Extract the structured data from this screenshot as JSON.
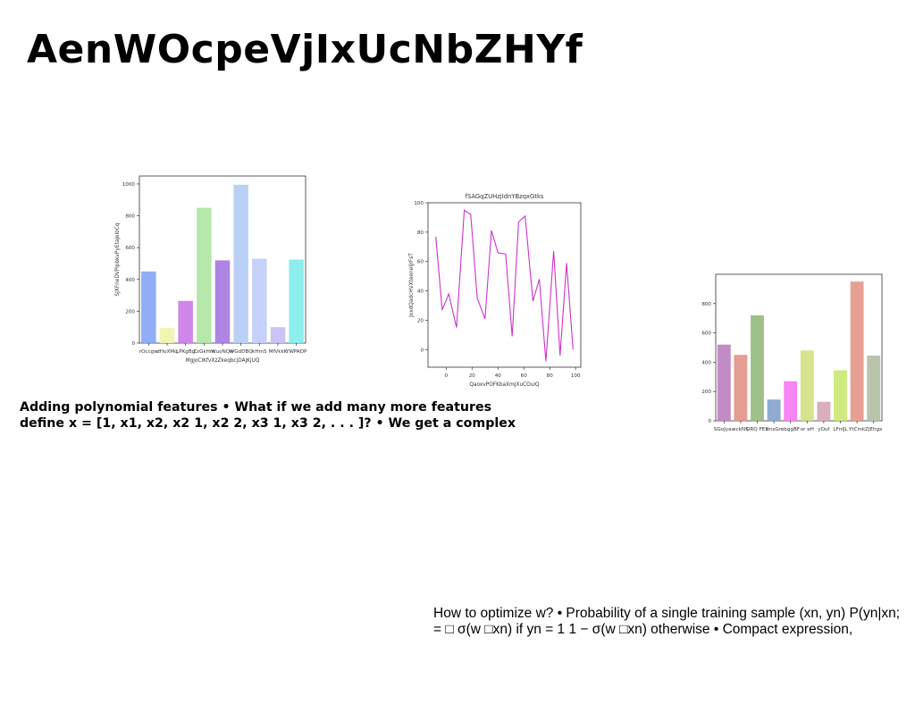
{
  "slide": {
    "title": "AenWOcpeVjIxUcNbZHYf",
    "bold_text": {
      "line1": "Adding polynomial features • What if we add many more features",
      "line2": "define x = [1, x1, x2, x2 1, x2 2, x3 1, x3 2, . . . ]? • We get a complex"
    },
    "plain_text": {
      "line1": "How to optimize w? • Probability of a single training sample (xn, yn) P(yn|xn;",
      "line2": "= □ σ(w □xn) if yn = 1 1 − σ(w □xn) otherwise • Compact expression,"
    }
  },
  "chart_data": [
    {
      "type": "bar",
      "title": "",
      "xlabel": "MgjoClKfvXzZkeqbcjDAjKjUQ",
      "ylabel": "SJXFneDVPlpbkvPyEtajeIbCq",
      "categories": [
        "rOccgw",
        "dHoXMq",
        "LPKgBg",
        "ZzGkHm",
        "WuoNQw",
        "WGdDBQ",
        "kHmS",
        "MfVkkK",
        "YWPADP"
      ],
      "values": [
        450,
        95,
        265,
        850,
        520,
        995,
        530,
        100,
        525
      ],
      "colors": [
        "#8aa9f5",
        "#eef5b0",
        "#cc80ea",
        "#b2e6a6",
        "#a97fe3",
        "#b7cdf4",
        "#c2cff8",
        "#c7c0f4",
        "#88ecec"
      ],
      "ylim": [
        0,
        1050
      ],
      "yticks": [
        0,
        200,
        400,
        600,
        800,
        1000
      ],
      "grid": false
    },
    {
      "type": "line",
      "title": "fSAGqZUHzjIdnYBzqxGtks",
      "xlabel": "QaoxvPOFKbaXmJXuCOuiQ",
      "ylabel": "jxxdQadcHVXteeneIjrFsT",
      "x": [
        -8,
        -3,
        2,
        8,
        14,
        19,
        24,
        30,
        35,
        40,
        46,
        51,
        56,
        61,
        67,
        72,
        77,
        83,
        88,
        93,
        98
      ],
      "values": [
        77,
        27,
        38,
        15,
        95,
        92,
        35,
        21,
        81,
        66,
        65,
        9,
        87,
        91,
        33,
        48,
        -8,
        67,
        -4,
        59,
        0
      ],
      "color": "#cc33cc",
      "xlim": [
        -14,
        104
      ],
      "ylim": [
        -12,
        100
      ],
      "xticks": [
        0,
        20,
        40,
        60,
        80,
        100
      ],
      "yticks": [
        0,
        20,
        40,
        60,
        80,
        100
      ],
      "grid": false
    },
    {
      "type": "bar",
      "title": "",
      "xlabel": "",
      "ylabel": "",
      "categories": [
        "SGoJyav",
        "eckNS",
        "ORQ FEX",
        "tmsGn",
        "sbggBF",
        "or eH",
        "yOuf",
        "LFnIJL",
        "YtCmk",
        "ZjEhgx"
      ],
      "values": [
        520,
        450,
        720,
        145,
        270,
        480,
        130,
        345,
        950,
        445
      ],
      "colors": [
        "#bf86c2",
        "#e3988c",
        "#9abd82",
        "#8aa5cf",
        "#f47ef2",
        "#d6e28a",
        "#d8aab8",
        "#cce97a",
        "#e59c8c",
        "#b6c1a8"
      ],
      "ylim": [
        0,
        1000
      ],
      "yticks": [
        0,
        200,
        400,
        600,
        800
      ],
      "grid": false
    }
  ]
}
